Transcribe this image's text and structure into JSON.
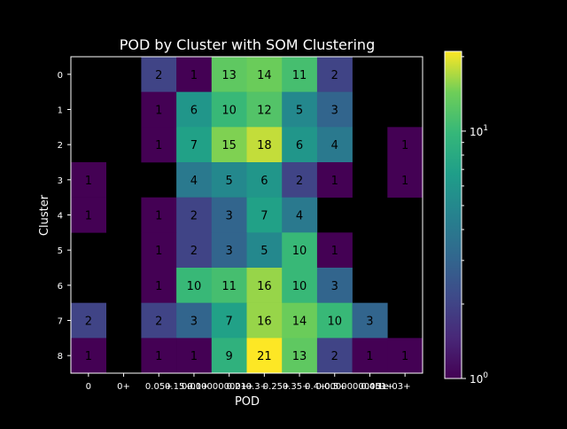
{
  "chart_data": {
    "type": "heatmap",
    "title": "POD by Cluster with SOM Clustering",
    "xlabel": "POD",
    "ylabel": "Cluster",
    "x_tick_labels": [
      "0",
      "0+",
      "0.05+",
      "0.15+",
      "0.1+",
      "0.0000000001+",
      "0.2+",
      "0.3+",
      "0.25+",
      "0.35+",
      "0.4+",
      "0.5+",
      "0.00000000001+",
      "0.45+",
      "1e-03+"
    ],
    "columns_count_note": "",
    "columns": [
      "c0",
      "c1",
      "c2",
      "c3",
      "c4",
      "c5",
      "c6",
      "c7",
      "c8",
      "c9"
    ],
    "visible_x_ticks": [
      "0",
      "0+",
      "0.05+",
      "0.15+",
      "0.1+",
      "0.0000000001+",
      "0.2+",
      "0.3+",
      "0.25+",
      "0.35+"
    ],
    "rows": [
      "0",
      "1",
      "2",
      "3",
      "4",
      "5",
      "6",
      "7",
      "8"
    ],
    "values": [
      [
        null,
        null,
        2,
        1,
        13,
        14,
        11,
        2,
        null,
        null
      ],
      [
        null,
        null,
        1,
        6,
        10,
        12,
        5,
        3,
        null,
        null
      ],
      [
        null,
        null,
        1,
        7,
        15,
        18,
        6,
        4,
        null,
        1
      ],
      [
        1,
        null,
        null,
        4,
        5,
        6,
        2,
        1,
        null,
        1
      ],
      [
        1,
        null,
        1,
        2,
        3,
        7,
        4,
        null,
        null,
        null
      ],
      [
        null,
        null,
        1,
        2,
        3,
        5,
        10,
        1,
        null,
        null
      ],
      [
        null,
        null,
        1,
        10,
        11,
        16,
        10,
        3,
        null,
        null
      ],
      [
        2,
        null,
        2,
        3,
        7,
        16,
        14,
        10,
        3,
        null
      ],
      [
        1,
        null,
        1,
        1,
        9,
        21,
        13,
        2,
        1,
        1
      ]
    ],
    "color_scale": "log",
    "colormap": "viridis",
    "colorbar_range": [
      1,
      21
    ],
    "colorbar_ticks": [
      "10^0",
      "10^1"
    ]
  }
}
